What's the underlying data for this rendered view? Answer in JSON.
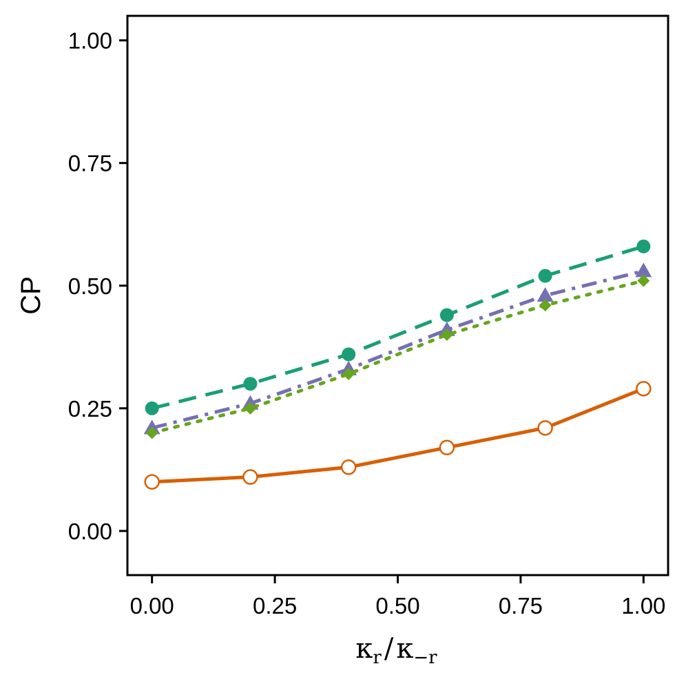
{
  "chart_data": {
    "type": "line",
    "title": "",
    "xlabel": {
      "main1": "κ",
      "sub1": "r",
      "sep": "/",
      "main2": "κ",
      "sub2": "−r"
    },
    "ylabel": "CP",
    "xlim": [
      -0.05,
      1.05
    ],
    "ylim": [
      -0.09,
      1.05
    ],
    "xticks": [
      0,
      0.25,
      0.5,
      0.75,
      1.0
    ],
    "xtick_labels": [
      "0.00",
      "0.25",
      "0.50",
      "0.75",
      "1.00"
    ],
    "yticks": [
      0,
      0.25,
      0.5,
      0.75,
      1.0
    ],
    "ytick_labels": [
      "0.00",
      "0.25",
      "0.50",
      "0.75",
      "1.00"
    ],
    "grid": false,
    "legend": "none",
    "x": [
      0,
      0.2,
      0.4,
      0.6,
      0.8,
      1.0
    ],
    "series": [
      {
        "values": [
          0.1,
          0.11,
          0.13,
          0.17,
          0.21,
          0.29
        ],
        "color": "#d95f02",
        "line_style": "solid",
        "marker": "open-circle"
      },
      {
        "values": [
          0.25,
          0.3,
          0.36,
          0.44,
          0.52,
          0.58
        ],
        "color": "#1b9e77",
        "line_style": "dashed",
        "marker": "filled-circle"
      },
      {
        "values": [
          0.21,
          0.26,
          0.33,
          0.41,
          0.48,
          0.53
        ],
        "color": "#7570b3",
        "line_style": "dash-dot",
        "marker": "filled-triangle"
      },
      {
        "values": [
          0.2,
          0.25,
          0.32,
          0.4,
          0.46,
          0.51
        ],
        "color": "#66a61e",
        "line_style": "dotted",
        "marker": "filled-diamond"
      }
    ]
  }
}
